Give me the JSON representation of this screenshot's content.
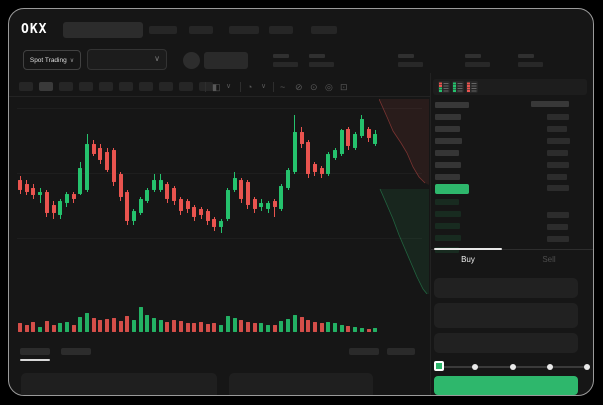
{
  "header": {
    "logo": "OKX",
    "nav_placeholder_count": 5
  },
  "toolbar": {
    "market_selector_label": "Spot Trading",
    "chevron": "∨",
    "interval_count": 10,
    "active_interval_index": 1,
    "icons": [
      "chart-type-icon",
      "chevron-down-icon",
      "clock-icon",
      "chevron-down-icon",
      "indicator-wave-icon",
      "draw-icon",
      "camera-icon",
      "settings-icon",
      "fullscreen-icon"
    ],
    "icon_glyphs": {
      "chart": "◧",
      "chev": "∨",
      "clock": "◔",
      "wave": "~",
      "draw": "⊘",
      "camera": "⊙",
      "settings": "◎",
      "fullscreen": "⊡"
    }
  },
  "colors": {
    "up": "#25c26d",
    "down": "#e9544f",
    "accent": "#2eb76c",
    "bid_tint": "#182b20",
    "ask_bar": "#353535"
  },
  "order_book": {
    "view_modes": [
      "both",
      "bids-only",
      "asks-only"
    ],
    "header": {
      "left_w": 34,
      "right_w": 38
    },
    "asks": [
      {
        "pw": 26,
        "aw": 22
      },
      {
        "pw": 25,
        "aw": 20
      },
      {
        "pw": 27,
        "aw": 23
      },
      {
        "pw": 24,
        "aw": 21
      },
      {
        "pw": 26,
        "aw": 22
      },
      {
        "pw": 25,
        "aw": 20
      }
    ],
    "mid": {
      "w": 34,
      "extra_amount_w": 22
    },
    "bids": [
      {
        "pw": 24,
        "aw": 0
      },
      {
        "pw": 26,
        "aw": 22
      },
      {
        "pw": 25,
        "aw": 21
      },
      {
        "pw": 26,
        "aw": 22
      },
      {
        "pw": 24,
        "aw": 0
      }
    ]
  },
  "trade_form": {
    "buy_label": "Buy",
    "sell_label": "Sell",
    "field_count": 3,
    "slider_stops_pct": [
      0,
      25,
      50,
      75,
      100
    ],
    "slider_value_pct": 0
  },
  "chart_data": {
    "type": "candlestick",
    "price_scale": [
      0,
      100
    ],
    "candles_ochl": [
      [
        58,
        53,
        60,
        51
      ],
      [
        56,
        52,
        58,
        50
      ],
      [
        54,
        50,
        56,
        48
      ],
      [
        50,
        52,
        54,
        46
      ],
      [
        52,
        41,
        53,
        39
      ],
      [
        45,
        41,
        47,
        38
      ],
      [
        40,
        47,
        48,
        38
      ],
      [
        46,
        51,
        52,
        44
      ],
      [
        51,
        48,
        52,
        46
      ],
      [
        51,
        64,
        67,
        50
      ],
      [
        53,
        76,
        81,
        52
      ],
      [
        76,
        71,
        78,
        70
      ],
      [
        74,
        68,
        76,
        66
      ],
      [
        72,
        63,
        74,
        62
      ],
      [
        73,
        57,
        74,
        55
      ],
      [
        61,
        49,
        62,
        47
      ],
      [
        52,
        37,
        53,
        35
      ],
      [
        37,
        42,
        43,
        35
      ],
      [
        41,
        48,
        49,
        40
      ],
      [
        47,
        53,
        54,
        46
      ],
      [
        53,
        58,
        61,
        52
      ],
      [
        53,
        58,
        61,
        52
      ],
      [
        56,
        48,
        57,
        46
      ],
      [
        54,
        47,
        55,
        45
      ],
      [
        48,
        42,
        49,
        40
      ],
      [
        47,
        43,
        48,
        41
      ],
      [
        44,
        39,
        45,
        37
      ],
      [
        43,
        40,
        44,
        38
      ],
      [
        42,
        37,
        43,
        35
      ],
      [
        38,
        34,
        39,
        32
      ],
      [
        34,
        37,
        38,
        31
      ],
      [
        38,
        53,
        54,
        37
      ],
      [
        53,
        59,
        62,
        52
      ],
      [
        58,
        48,
        59,
        46
      ],
      [
        57,
        45,
        58,
        43
      ],
      [
        48,
        43,
        49,
        41
      ],
      [
        44,
        46,
        48,
        42
      ],
      [
        43,
        46,
        47,
        41
      ],
      [
        47,
        44,
        48,
        39
      ],
      [
        43,
        55,
        56,
        42
      ],
      [
        54,
        63,
        64,
        53
      ],
      [
        62,
        82,
        91,
        61
      ],
      [
        82,
        76,
        85,
        74
      ],
      [
        77,
        61,
        78,
        59
      ],
      [
        66,
        62,
        67,
        60
      ],
      [
        64,
        61,
        65,
        59
      ],
      [
        61,
        71,
        72,
        60
      ],
      [
        69,
        73,
        74,
        68
      ],
      [
        71,
        83,
        84,
        70
      ],
      [
        84,
        75,
        85,
        73
      ],
      [
        74,
        81,
        82,
        73
      ],
      [
        80,
        89,
        91,
        79
      ],
      [
        84,
        79,
        85,
        77
      ],
      [
        76,
        81,
        83,
        75
      ]
    ],
    "volume": [
      35,
      28,
      40,
      22,
      45,
      30,
      38,
      42,
      30,
      60,
      75,
      55,
      48,
      52,
      58,
      45,
      65,
      50,
      100,
      70,
      55,
      48,
      42,
      50,
      45,
      38,
      35,
      40,
      32,
      38,
      30,
      65,
      55,
      48,
      42,
      38,
      35,
      30,
      28,
      45,
      52,
      70,
      60,
      48,
      40,
      35,
      42,
      38,
      30,
      25,
      22,
      15,
      12,
      18
    ],
    "depth": {
      "asks_fill": "0,2 8,20 14,34 22,46 28,56 34,70 40,80 46,86 50,88 50,2",
      "asks_line": "0,2 8,20 14,34 22,46 28,56 34,70 40,80 46,86",
      "bids_fill": "1,92 8,108 14,122 20,138 26,152 32,166 38,180 44,192 48,197 50,197 50,92",
      "bids_line": "1,92 8,108 14,122 20,138 26,152 32,166 38,180 44,192 48,197"
    }
  }
}
